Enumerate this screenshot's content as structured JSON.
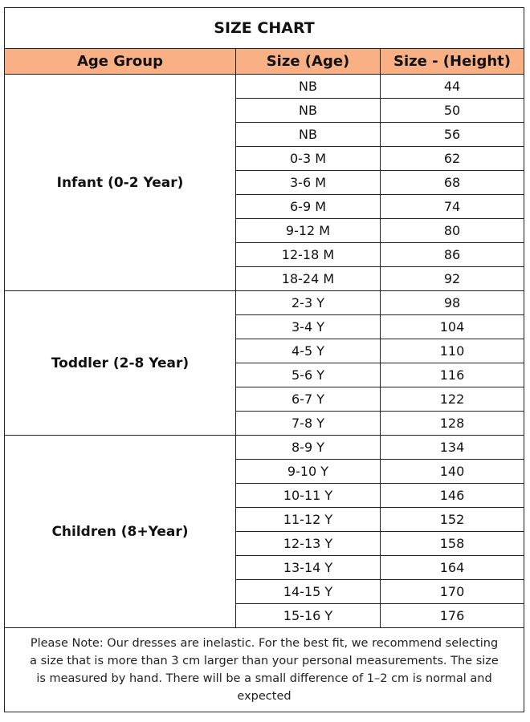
{
  "title": "SIZE CHART",
  "table": {
    "columns": [
      "Age Group",
      "Size (Age)",
      "Size - (Height)"
    ],
    "groups": [
      {
        "label": "Infant (0-2 Year)",
        "rows": [
          [
            "NB",
            44
          ],
          [
            "NB",
            50
          ],
          [
            "NB",
            56
          ],
          [
            "0-3 M",
            62
          ],
          [
            "3-6 M",
            68
          ],
          [
            "6-9 M",
            74
          ],
          [
            "9-12 M",
            80
          ],
          [
            "12-18 M",
            86
          ],
          [
            "18-24 M",
            92
          ]
        ]
      },
      {
        "label": "Toddler (2-8 Year)",
        "rows": [
          [
            "2-3 Y",
            98
          ],
          [
            "3-4 Y",
            104
          ],
          [
            "4-5 Y",
            110
          ],
          [
            "5-6 Y",
            116
          ],
          [
            "6-7 Y",
            122
          ],
          [
            "7-8 Y",
            128
          ]
        ]
      },
      {
        "label": "Children (8+Year)",
        "rows": [
          [
            "8-9 Y",
            134
          ],
          [
            "9-10 Y",
            140
          ],
          [
            "10-11 Y",
            146
          ],
          [
            "11-12 Y",
            152
          ],
          [
            "12-13 Y",
            158
          ],
          [
            "13-14 Y",
            164
          ],
          [
            "14-15 Y",
            170
          ],
          [
            "15-16 Y",
            176
          ]
        ]
      }
    ]
  },
  "note": "Please Note: Our dresses are inelastic. For the best fit, we recommend selecting a size that is more than 3 cm larger than your personal measurements. The size is measured by hand. There will be a small difference of 1–2 cm is normal and expected"
}
